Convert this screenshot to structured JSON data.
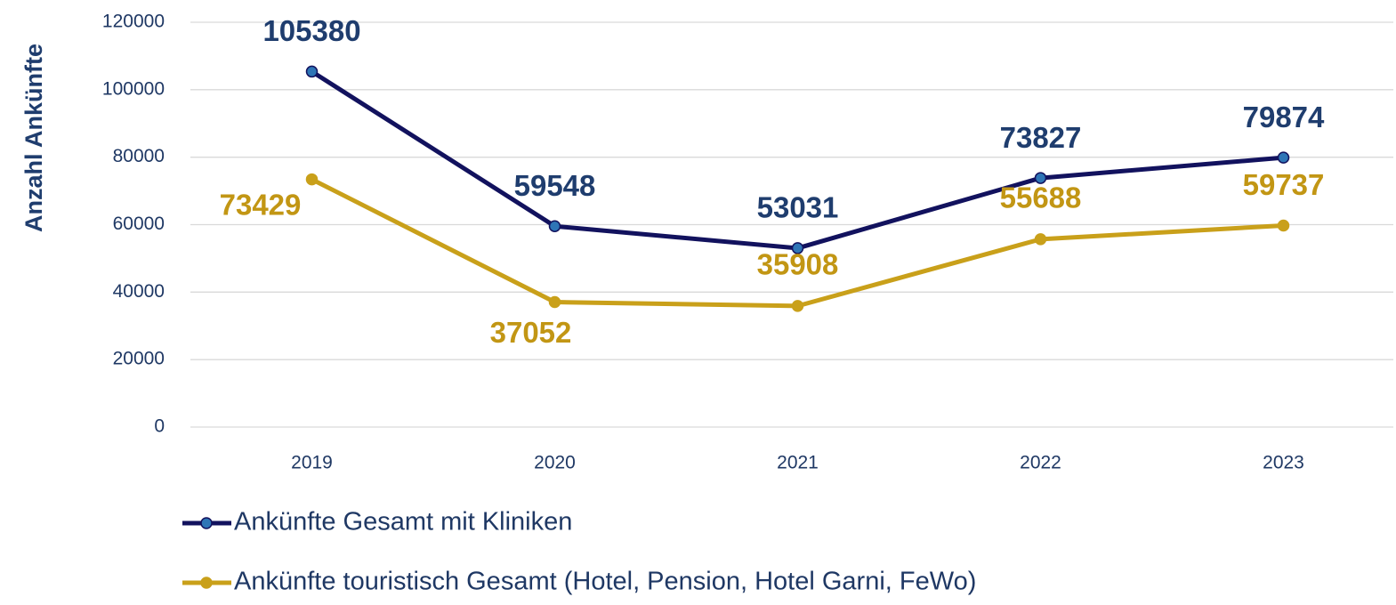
{
  "chart_data": {
    "type": "line",
    "y_label": "Anzahl Ankünfte",
    "categories": [
      "2019",
      "2020",
      "2021",
      "2022",
      "2023"
    ],
    "series": [
      {
        "name": "Ankünfte Gesamt mit Kliniken",
        "color": "#12125e",
        "marker_color": "#2e75b6",
        "label_color": "#1f3d6e",
        "values": [
          105380,
          59548,
          53031,
          73827,
          79874
        ]
      },
      {
        "name": "Ankünfte touristisch Gesamt (Hotel, Pension, Hotel Garni, FeWo)",
        "color": "#c9a01a",
        "marker_color": "#c9a01a",
        "label_color": "#c29614",
        "values": [
          73429,
          37052,
          35908,
          55688,
          59737
        ]
      }
    ],
    "ylim": [
      0,
      120000
    ],
    "yticks": [
      0,
      20000,
      40000,
      60000,
      80000,
      100000,
      120000
    ],
    "grid": true
  }
}
